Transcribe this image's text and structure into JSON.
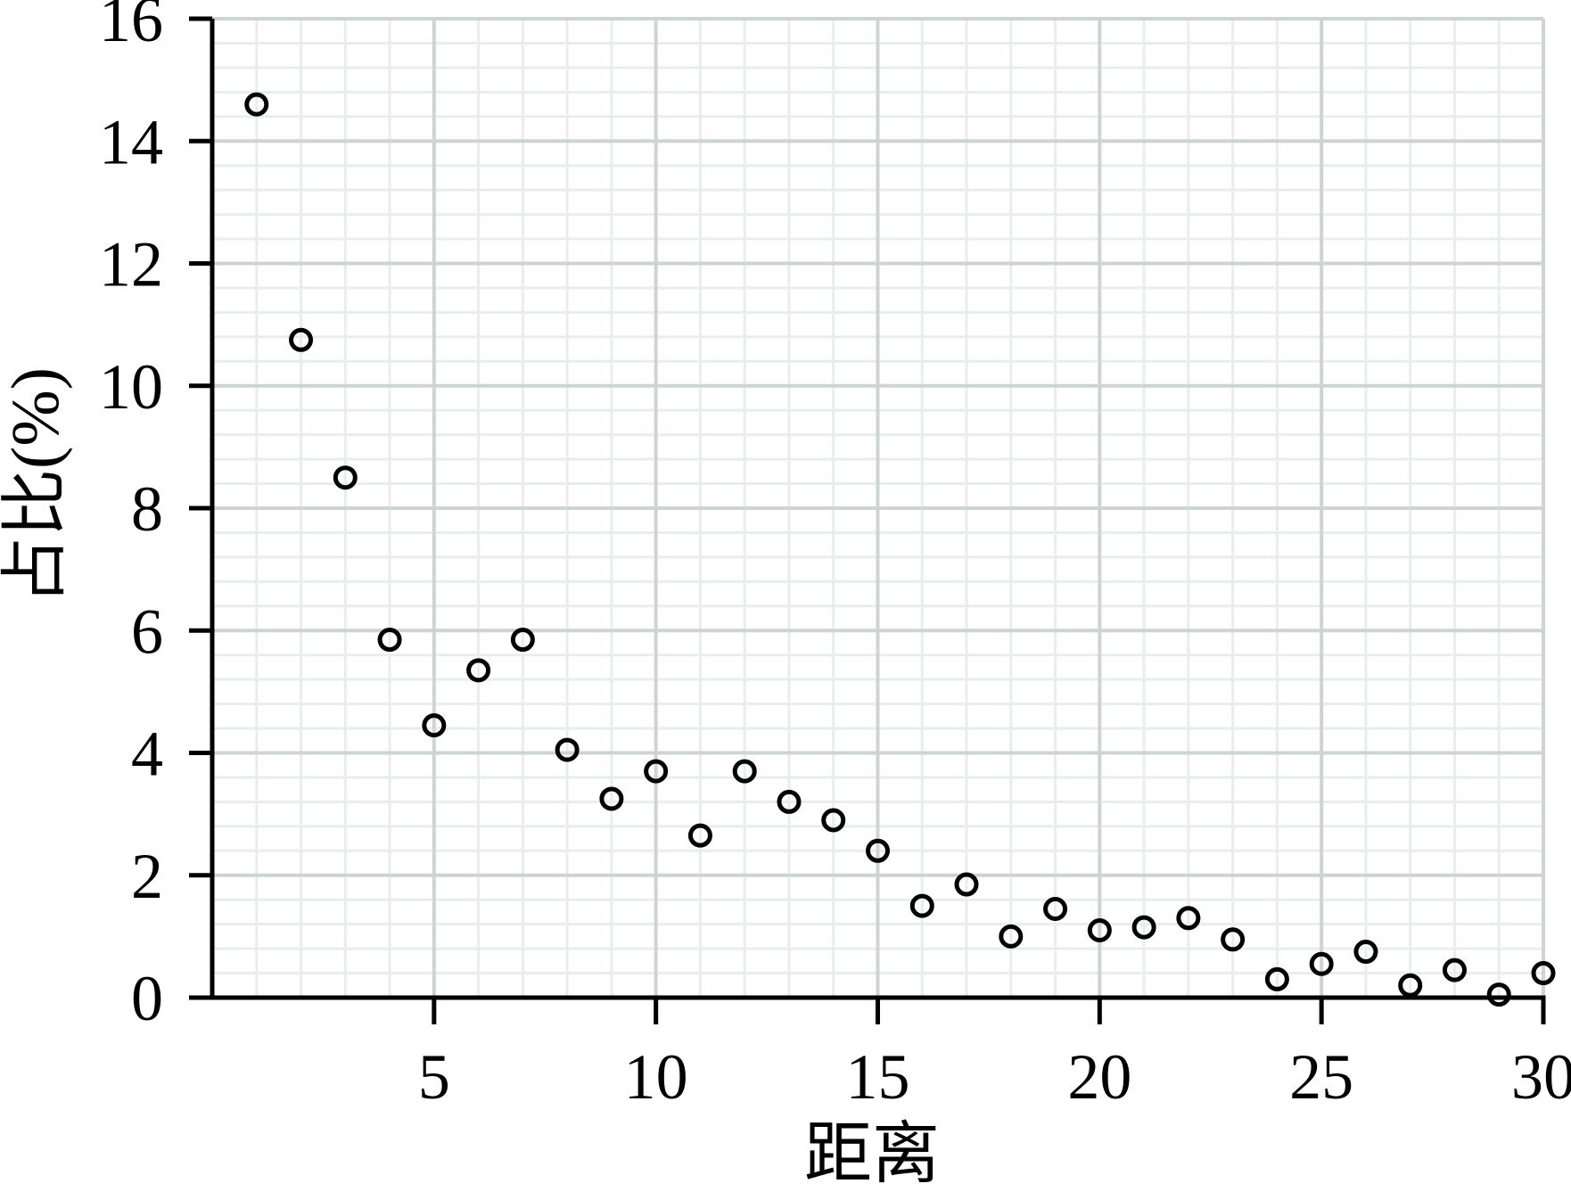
{
  "chart_data": {
    "type": "scatter",
    "title": "",
    "xlabel": "距离",
    "ylabel": "占比(%)",
    "x": [
      1,
      2,
      3,
      4,
      5,
      6,
      7,
      8,
      9,
      10,
      11,
      12,
      13,
      14,
      15,
      16,
      17,
      18,
      19,
      20,
      21,
      22,
      23,
      24,
      25,
      26,
      27,
      28,
      29,
      30
    ],
    "y": [
      14.6,
      10.75,
      8.5,
      5.85,
      4.45,
      5.35,
      5.85,
      4.05,
      3.25,
      3.7,
      2.65,
      3.7,
      3.2,
      2.9,
      2.4,
      1.5,
      1.85,
      1.0,
      1.45,
      1.1,
      1.15,
      1.3,
      0.95,
      0.3,
      0.55,
      0.75,
      0.2,
      0.45,
      0.05,
      0.4
    ],
    "xlim": [
      0,
      30
    ],
    "ylim": [
      0,
      16
    ],
    "x_major_ticks": [
      5,
      10,
      15,
      20,
      25,
      30
    ],
    "y_major_ticks": [
      0,
      2,
      4,
      6,
      8,
      10,
      12,
      14,
      16
    ],
    "x_minor_step": 1,
    "y_minor_step": 0.4,
    "grid": true,
    "legend": "none",
    "marker": {
      "shape": "open-circle",
      "radius": 11,
      "stroke_width": 5
    },
    "colors": {
      "marker": "#000000",
      "axis": "#000000",
      "text": "#000000",
      "major_grid": "#ccd5d4",
      "minor_grid": "#e9edee",
      "background": "#ffffff"
    }
  }
}
